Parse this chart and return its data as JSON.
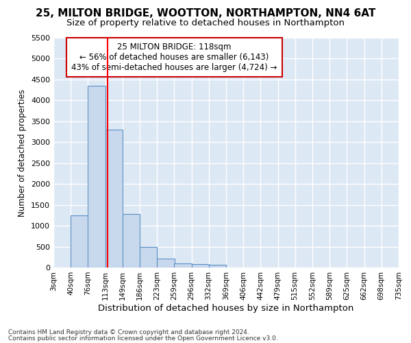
{
  "title_line1": "25, MILTON BRIDGE, WOOTTON, NORTHAMPTON, NN4 6AT",
  "title_line2": "Size of property relative to detached houses in Northampton",
  "xlabel": "Distribution of detached houses by size in Northampton",
  "ylabel": "Number of detached properties",
  "footnote1": "Contains HM Land Registry data © Crown copyright and database right 2024.",
  "footnote2": "Contains public sector information licensed under the Open Government Licence v3.0.",
  "annotation_line1": "25 MILTON BRIDGE: 118sqm",
  "annotation_line2": "← 56% of detached houses are smaller (6,143)",
  "annotation_line3": "43% of semi-detached houses are larger (4,724) →",
  "bar_left_edges": [
    3,
    40,
    76,
    113,
    149,
    186,
    223,
    259,
    296,
    332,
    369,
    406,
    442,
    479,
    515,
    552,
    589,
    625,
    662,
    698
  ],
  "bar_heights": [
    0,
    1250,
    4350,
    3300,
    1280,
    490,
    220,
    95,
    85,
    60,
    0,
    0,
    0,
    0,
    0,
    0,
    0,
    0,
    0,
    0
  ],
  "bin_width": 37,
  "bar_color": "#c8d9ee",
  "bar_edge_color": "#5a8fc3",
  "red_line_x": 118,
  "ylim": [
    0,
    5500
  ],
  "yticks": [
    0,
    500,
    1000,
    1500,
    2000,
    2500,
    3000,
    3500,
    4000,
    4500,
    5000,
    5500
  ],
  "xtick_labels": [
    "3sqm",
    "40sqm",
    "76sqm",
    "113sqm",
    "149sqm",
    "186sqm",
    "223sqm",
    "259sqm",
    "296sqm",
    "332sqm",
    "369sqm",
    "406sqm",
    "442sqm",
    "479sqm",
    "515sqm",
    "552sqm",
    "589sqm",
    "625sqm",
    "662sqm",
    "698sqm",
    "735sqm"
  ],
  "xtick_positions": [
    3,
    40,
    76,
    113,
    149,
    186,
    223,
    259,
    296,
    332,
    369,
    406,
    442,
    479,
    515,
    552,
    589,
    625,
    662,
    698,
    735
  ],
  "figure_bg_color": "#ffffff",
  "plot_bg_color": "#dde8f5",
  "grid_color": "#ffffff",
  "title_fontsize": 11,
  "subtitle_fontsize": 9.5,
  "annotation_box_color": "#ffffff",
  "annotation_box_edge": "#cc0000"
}
